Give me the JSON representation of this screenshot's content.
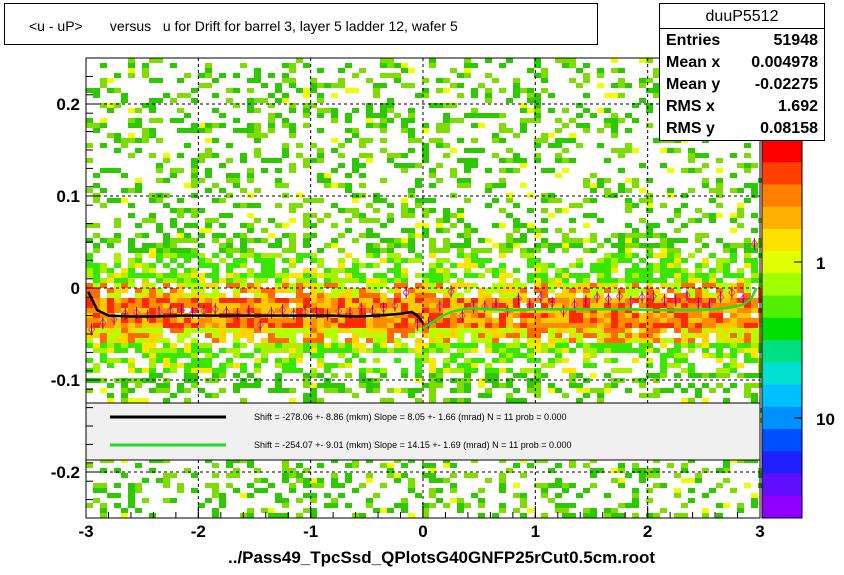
{
  "title": "<u - uP>       versus   u for Drift for barrel 3, layer 5 ladder 12, wafer 5",
  "footer": "../Pass49_TpcSsd_QPlotsG40GNFP25rCut0.5cm.root",
  "stats": {
    "name": "duuP5512",
    "rows": [
      {
        "label": "Entries",
        "value": "51948"
      },
      {
        "label": "Mean x",
        "value": "0.004978"
      },
      {
        "label": "Mean y",
        "value": "-0.02275"
      },
      {
        "label": "RMS x",
        "value": "1.692"
      },
      {
        "label": "RMS y",
        "value": "0.08158"
      }
    ]
  },
  "chart_data": {
    "type": "heatmap",
    "xlim": [
      -3,
      3
    ],
    "ylim": [
      -0.25,
      0.25
    ],
    "x_ticks": [
      "-3",
      "-2",
      "-1",
      "0",
      "1",
      "2",
      "3"
    ],
    "y_ticks": [
      "-0.2",
      "-0.1",
      "0",
      "0.1",
      "0.2"
    ],
    "colorbar_ticks": [
      "1",
      "10"
    ],
    "colorbar_scale": "log",
    "grid": true,
    "series": [
      {
        "name": "Shift =  -278.06 +- 8.86 (mkm) Slope =    8.05 +- 1.66 (mrad)  N = 11 prob = 0.000",
        "color": "#000000",
        "x": [
          -2.98,
          -2.9,
          -2.8,
          -2.6,
          -2.4,
          -2.2,
          -2.0,
          -1.8,
          -1.6,
          -1.4,
          -1.2,
          -1.0,
          -0.8,
          -0.6,
          -0.4,
          -0.2,
          -0.1,
          -0.05,
          0.0
        ],
        "y": [
          -0.004,
          -0.024,
          -0.03,
          -0.031,
          -0.031,
          -0.03,
          -0.03,
          -0.03,
          -0.03,
          -0.03,
          -0.03,
          -0.03,
          -0.03,
          -0.031,
          -0.03,
          -0.028,
          -0.026,
          -0.03,
          -0.038
        ]
      },
      {
        "name": "Shift =  -254.07 +- 9.01 (mkm) Slope =    14.15 +- 1.69 (mrad)  N = 11 prob = 0.000",
        "color": "#22dd22",
        "x": [
          0.0,
          0.05,
          0.15,
          0.25,
          0.4,
          0.6,
          0.8,
          1.0,
          1.2,
          1.5,
          1.8,
          2.1,
          2.4,
          2.6,
          2.75,
          2.85,
          2.92,
          2.97
        ],
        "y": [
          -0.044,
          -0.04,
          -0.032,
          -0.026,
          -0.022,
          -0.023,
          -0.024,
          -0.023,
          -0.023,
          -0.023,
          -0.023,
          -0.024,
          -0.024,
          -0.023,
          -0.021,
          -0.018,
          -0.012,
          0.0
        ]
      }
    ],
    "profile_points": {
      "x": [
        -2.95,
        -2.85,
        -2.75,
        -2.65,
        -2.55,
        -2.45,
        -2.35,
        -2.25,
        -2.15,
        -2.05,
        -1.95,
        -1.85,
        -1.75,
        -1.65,
        -1.55,
        -1.45,
        -1.35,
        -1.25,
        -1.15,
        -1.05,
        -0.95,
        -0.85,
        -0.75,
        -0.65,
        -0.55,
        -0.45,
        -0.35,
        -0.25,
        -0.15,
        -0.05,
        0.05,
        0.15,
        0.25,
        0.35,
        0.45,
        0.55,
        0.65,
        0.75,
        0.85,
        0.95,
        1.05,
        1.15,
        1.25,
        1.35,
        1.45,
        1.55,
        1.65,
        1.75,
        1.85,
        1.95,
        2.05,
        2.15,
        2.25,
        2.35,
        2.45,
        2.55,
        2.65,
        2.75,
        2.85,
        2.95
      ],
      "y": [
        -0.045,
        -0.038,
        -0.034,
        -0.028,
        -0.027,
        -0.03,
        -0.026,
        -0.025,
        -0.024,
        -0.027,
        -0.025,
        -0.023,
        -0.026,
        -0.028,
        -0.025,
        -0.04,
        -0.027,
        -0.024,
        -0.028,
        -0.026,
        -0.027,
        -0.029,
        -0.025,
        -0.027,
        -0.022,
        -0.025,
        -0.022,
        -0.019,
        -0.005,
        -0.04,
        -0.038,
        -0.02,
        -0.004,
        -0.03,
        -0.021,
        -0.02,
        -0.018,
        -0.025,
        -0.012,
        -0.018,
        -0.01,
        -0.016,
        -0.025,
        -0.018,
        -0.014,
        -0.01,
        -0.012,
        -0.009,
        -0.015,
        -0.01,
        -0.009,
        -0.013,
        -0.014,
        -0.008,
        -0.016,
        -0.018,
        -0.01,
        -0.005,
        -0.012,
        0.048
      ]
    }
  }
}
